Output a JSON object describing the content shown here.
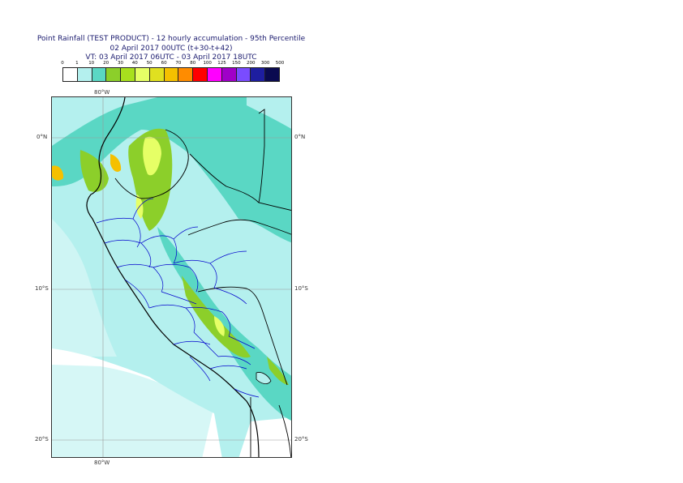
{
  "title": {
    "line1": "Point Rainfall (TEST PRODUCT) - 12 hourly accumulation - 95th Percentile",
    "line2": "02 April 2017 00UTC (t+30-t+42)",
    "line3": "VT: 03 April 2017 06UTC - 03 April 2017 18UTC"
  },
  "legend": {
    "ticks": [
      "0",
      "1",
      "10",
      "20",
      "30",
      "40",
      "50",
      "60",
      "70",
      "80",
      "100",
      "125",
      "150",
      "200",
      "300",
      "500"
    ],
    "colors": [
      "#ffffff",
      "#b4f0ee",
      "#5ad7c4",
      "#8ccf2a",
      "#a8e01e",
      "#e6ff66",
      "#e0e020",
      "#f5c000",
      "#ff8c00",
      "#ff0000",
      "#ff00ff",
      "#a000c8",
      "#7a4cff",
      "#1e1ea0",
      "#0a0a50"
    ]
  },
  "map": {
    "lon_labels": {
      "top": "80°W",
      "bottom": "80°W"
    },
    "lat_labels": {
      "left": [
        "0°N",
        "10°S",
        "20°S"
      ],
      "right": [
        "0°N",
        "10°S",
        "20°S"
      ]
    },
    "colors": {
      "ocean_light": "#b4f0ee",
      "land_rain": "#5ad7c4",
      "green": "#8ccf2a",
      "yellowgreen": "#a8e01e",
      "yellow": "#e6ff66",
      "orange": "#f5c000",
      "coast": "#000000",
      "admin": "#0000cc",
      "grid": "#999999"
    }
  }
}
